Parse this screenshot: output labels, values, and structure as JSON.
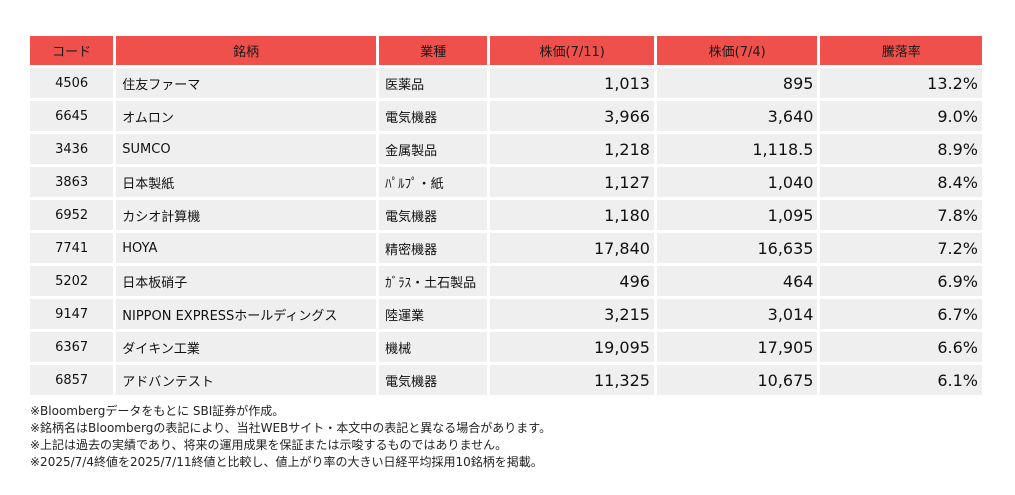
{
  "table": {
    "headers": [
      "コード",
      "銘柄",
      "業種",
      "株価(7/11)",
      "株価(7/4)",
      "騰落率"
    ],
    "rows": [
      {
        "code": "4506",
        "name": "住友ファーマ",
        "sector": "医薬品",
        "price_0711": "1,013",
        "price_0704": "895",
        "change": "13.2%"
      },
      {
        "code": "6645",
        "name": "オムロン",
        "sector": "電気機器",
        "price_0711": "3,966",
        "price_0704": "3,640",
        "change": "9.0%"
      },
      {
        "code": "3436",
        "name": "SUMCO",
        "sector": "金属製品",
        "price_0711": "1,218",
        "price_0704": "1,118.5",
        "change": "8.9%"
      },
      {
        "code": "3863",
        "name": "日本製紙",
        "sector": "ﾊﾟﾙﾌﾟ・紙",
        "price_0711": "1,127",
        "price_0704": "1,040",
        "change": "8.4%"
      },
      {
        "code": "6952",
        "name": "カシオ計算機",
        "sector": "電気機器",
        "price_0711": "1,180",
        "price_0704": "1,095",
        "change": "7.8%"
      },
      {
        "code": "7741",
        "name": "HOYA",
        "sector": "精密機器",
        "price_0711": "17,840",
        "price_0704": "16,635",
        "change": "7.2%"
      },
      {
        "code": "5202",
        "name": "日本板硝子",
        "sector": "ｶﾞﾗｽ・土石製品",
        "price_0711": "496",
        "price_0704": "464",
        "change": "6.9%"
      },
      {
        "code": "9147",
        "name": "NIPPON EXPRESSホールディングス",
        "sector": "陸運業",
        "price_0711": "3,215",
        "price_0704": "3,014",
        "change": "6.7%"
      },
      {
        "code": "6367",
        "name": "ダイキン工業",
        "sector": "機械",
        "price_0711": "19,095",
        "price_0704": "17,905",
        "change": "6.6%"
      },
      {
        "code": "6857",
        "name": "アドバンテスト",
        "sector": "電気機器",
        "price_0711": "11,325",
        "price_0704": "10,675",
        "change": "6.1%"
      }
    ]
  },
  "notes": [
    "※Bloombergデータをもとに SBI証券が作成。",
    "※銘柄名はBloombergの表記により、当社WEBサイト・本文中の表記と異なる場合があります。",
    "※上記は過去の実績であり、将来の運用成果を保証または示唆するものではありません。",
    "※2025/7/4終値を2025/7/11終値と比較し、値上がり率の大きい日経平均採用10銘柄を掲載。"
  ],
  "colors": {
    "header_bg": "#f0504b",
    "cell_bg": "#efefef"
  }
}
